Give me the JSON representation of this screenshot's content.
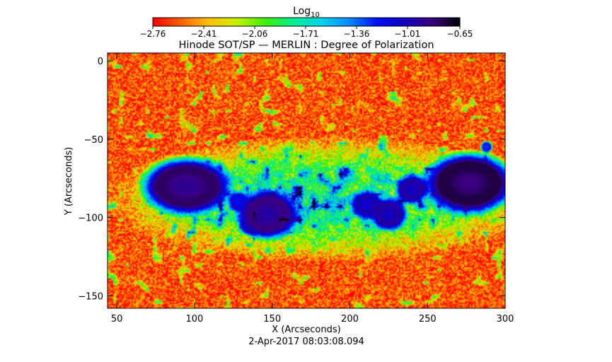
{
  "chart_data": {
    "type": "heatmap",
    "title": "Hinode SOT/SP — MERLIN : Degree of Polarization",
    "xlabel": "X (Arcseconds)",
    "ylabel": "Y (Arcseconds)",
    "timestamp": "2-Apr-2017 08:03:08.094",
    "xlim": [
      44,
      300
    ],
    "ylim": [
      -158,
      5
    ],
    "x_ticks": [
      50,
      100,
      150,
      200,
      250,
      300
    ],
    "y_ticks": [
      0,
      -50,
      -100,
      -150
    ],
    "x_tick_labels": [
      "50",
      "100",
      "150",
      "200",
      "250",
      "300"
    ],
    "y_tick_labels": [
      "0",
      "−50",
      "−100",
      "−150"
    ],
    "colorbar": {
      "label": "Log",
      "label_subscript": "10",
      "range": [
        -2.76,
        -0.65
      ],
      "ticks": [
        -2.76,
        -2.41,
        -2.06,
        -1.71,
        -1.36,
        -1.01,
        -0.65
      ],
      "tick_labels": [
        "−2.76",
        "−2.41",
        "−2.06",
        "−1.71",
        "−1.36",
        "−1.01",
        "−0.65"
      ],
      "colormap": [
        "#ff0000",
        "#ff6000",
        "#ffc000",
        "#c8f000",
        "#40f000",
        "#00f090",
        "#00d8e8",
        "#0090ff",
        "#0010ff",
        "#1000c0",
        "#3a0080",
        "#000000"
      ]
    },
    "background_level": -2.6,
    "spots": [
      {
        "x": 95,
        "y": -80,
        "rx": 22,
        "ry": 14,
        "peak": -0.8
      },
      {
        "x": 147,
        "y": -98,
        "rx": 15,
        "ry": 12,
        "peak": -0.85
      },
      {
        "x": 137,
        "y": -105,
        "rx": 6,
        "ry": 5,
        "peak": -1.0
      },
      {
        "x": 128,
        "y": -90,
        "rx": 5,
        "ry": 5,
        "peak": -1.1
      },
      {
        "x": 211,
        "y": -92,
        "rx": 8,
        "ry": 7,
        "peak": -1.0
      },
      {
        "x": 225,
        "y": -98,
        "rx": 9,
        "ry": 8,
        "peak": -0.95
      },
      {
        "x": 240,
        "y": -82,
        "rx": 8,
        "ry": 7,
        "peak": -0.95
      },
      {
        "x": 277,
        "y": -78,
        "rx": 22,
        "ry": 15,
        "peak": -0.75
      },
      {
        "x": 288,
        "y": -55,
        "rx": 3,
        "ry": 3,
        "peak": -1.2
      }
    ],
    "active_region": {
      "x": 185,
      "y": -88,
      "rx": 115,
      "ry": 32,
      "level": -1.7
    }
  }
}
